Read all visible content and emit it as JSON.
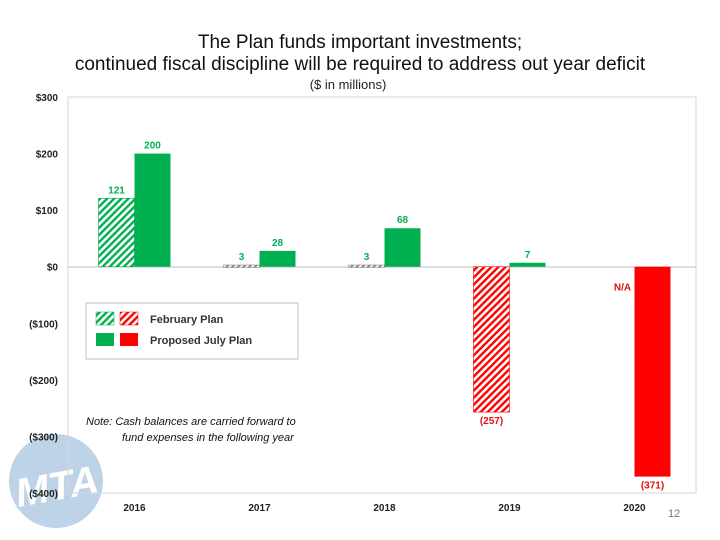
{
  "title_line1": "The Plan funds important investments;",
  "title_line2": "continued fiscal discipline will be required to address out year deficit",
  "subtitle": "($ in millions)",
  "note_line1": "Note: Cash balances are carried forward to",
  "note_line2": "fund expenses in the following year",
  "logo_text": "MTA",
  "page_number": "12",
  "colors": {
    "green": "#00b050",
    "red": "#ff0000",
    "na_red": "#e01010"
  },
  "chart_data": {
    "type": "bar",
    "categories": [
      "2016",
      "2017",
      "2018",
      "2019",
      "2020"
    ],
    "series": [
      {
        "name": "February Plan",
        "values": [
          121,
          3,
          3,
          -257,
          null
        ],
        "labels": [
          "121",
          "3",
          "3",
          "(257)",
          "N/A"
        ]
      },
      {
        "name": "Proposed July Plan",
        "values": [
          200,
          28,
          68,
          7,
          -371
        ],
        "labels": [
          "200",
          "28",
          "68",
          "7",
          "(371)"
        ]
      }
    ],
    "ylim": [
      -400,
      300
    ],
    "yticks": [
      300,
      200,
      100,
      0,
      -100,
      -200,
      -300,
      -400
    ],
    "ytick_labels": [
      "$300",
      "$200",
      "$100",
      "$0",
      "($100)",
      "($200)",
      "($300)",
      "($400)"
    ],
    "legend": {
      "position": "center-left",
      "entries": [
        "February Plan",
        "Proposed July Plan"
      ]
    }
  }
}
